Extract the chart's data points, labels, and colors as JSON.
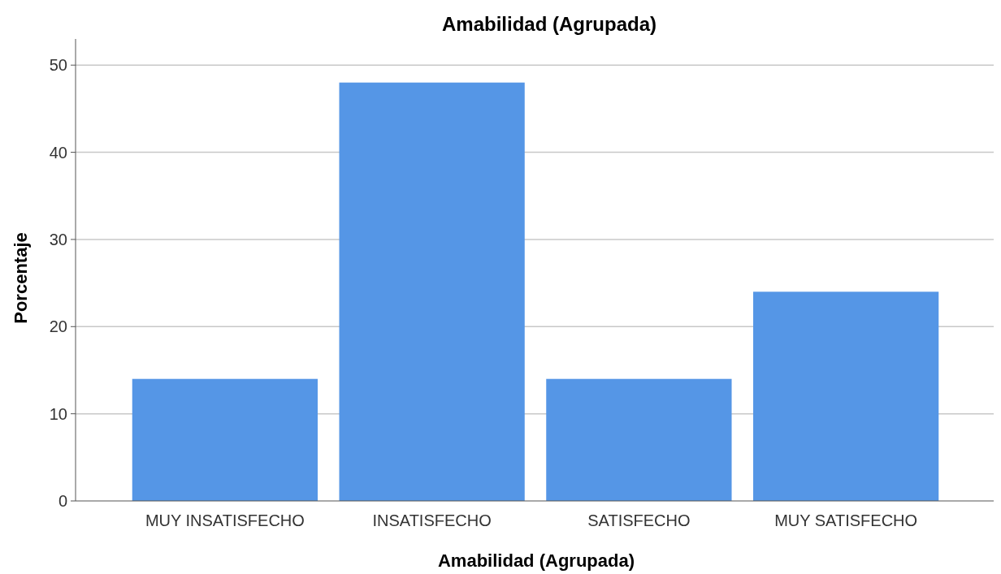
{
  "chart_data": {
    "type": "bar",
    "title": "Amabilidad (Agrupada)",
    "xlabel": "Amabilidad (Agrupada)",
    "ylabel": "Porcentaje",
    "categories": [
      "MUY INSATISFECHO",
      "INSATISFECHO",
      "SATISFECHO",
      "MUY SATISFECHO"
    ],
    "values": [
      14,
      48,
      14,
      24
    ],
    "color": "#5596e6",
    "ylim": [
      0,
      53
    ],
    "yticks": [
      0,
      10,
      20,
      30,
      40,
      50
    ],
    "grid": "y"
  }
}
